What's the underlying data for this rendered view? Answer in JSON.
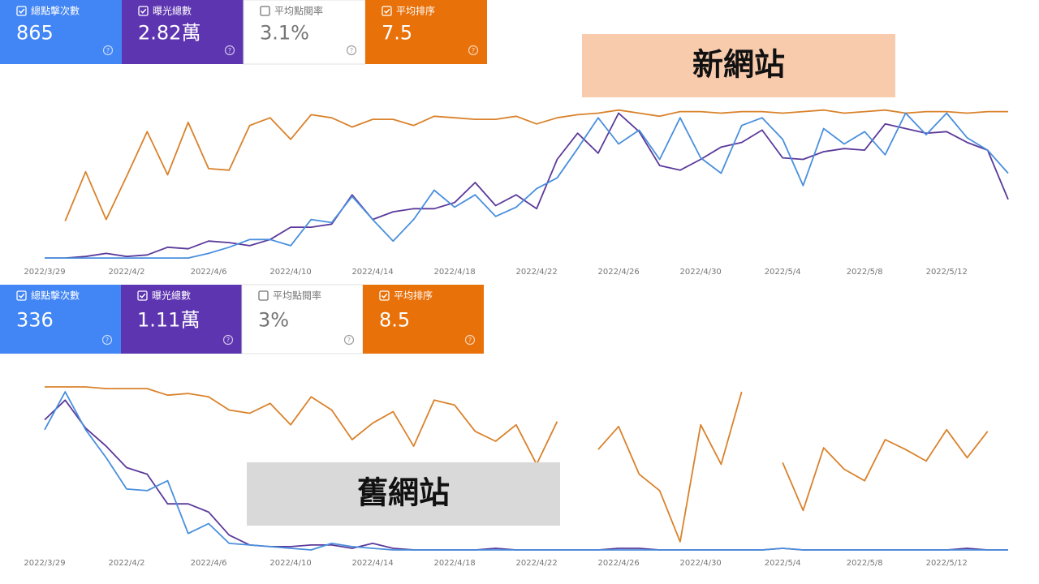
{
  "panels": [
    {
      "cards": [
        {
          "label": "總點擊次數",
          "value": "865",
          "checked": true,
          "color": "#4285f4"
        },
        {
          "label": "曝光總數",
          "value": "2.82萬",
          "checked": true,
          "color": "#5e35b1"
        },
        {
          "label": "平均點閱率",
          "value": "3.1%",
          "checked": false,
          "color": "#ffffff"
        },
        {
          "label": "平均排序",
          "value": "7.5",
          "checked": true,
          "color": "#e8710a"
        }
      ],
      "tag": "新網站",
      "tag_color": "#f8cbad"
    },
    {
      "cards": [
        {
          "label": "總點擊次數",
          "value": "336",
          "checked": true,
          "color": "#4285f4"
        },
        {
          "label": "曝光總數",
          "value": "1.11萬",
          "checked": true,
          "color": "#5e35b1"
        },
        {
          "label": "平均點閱率",
          "value": "3%",
          "checked": false,
          "color": "#ffffff"
        },
        {
          "label": "平均排序",
          "value": "8.5",
          "checked": true,
          "color": "#e8710a"
        }
      ],
      "tag": "舊網站",
      "tag_color": "#d9d9d9"
    }
  ],
  "chart_data": [
    {
      "type": "line",
      "ylim": [
        0,
        100
      ],
      "categories": [
        "2022/3/29",
        null,
        null,
        null,
        "2022/4/2",
        null,
        null,
        null,
        "2022/4/6",
        null,
        null,
        null,
        "2022/4/10",
        null,
        null,
        null,
        "2022/4/14",
        null,
        null,
        null,
        "2022/4/18",
        null,
        null,
        null,
        "2022/4/22",
        null,
        null,
        null,
        "2022/4/26",
        null,
        null,
        null,
        "2022/4/30",
        null,
        null,
        null,
        "2022/5/4",
        null,
        null,
        null,
        "2022/5/8",
        null,
        null,
        null,
        "2022/5/12",
        null,
        null,
        null
      ],
      "series": [
        {
          "name": "總點擊次數",
          "color": "#4a8fdd",
          "values": [
            1,
            1,
            1,
            1,
            1,
            1,
            1,
            1,
            4,
            8,
            13,
            13,
            9,
            26,
            24,
            41,
            26,
            12,
            26,
            45,
            34,
            42,
            28,
            34,
            46,
            53,
            72,
            92,
            75,
            84,
            65,
            92,
            66,
            56,
            87,
            92,
            78,
            48,
            85,
            75,
            83,
            68,
            95,
            81,
            95,
            79,
            71,
            56
          ]
        },
        {
          "name": "曝光總數",
          "color": "#5b3a9b",
          "values": [
            1,
            1,
            2,
            4,
            2,
            3,
            8,
            7,
            12,
            11,
            9,
            13,
            21,
            21,
            23,
            42,
            26,
            31,
            33,
            33,
            37,
            50,
            35,
            42,
            33,
            65,
            82,
            69,
            95,
            83,
            61,
            58,
            65,
            73,
            76,
            84,
            66,
            65,
            70,
            72,
            71,
            88,
            85,
            82,
            83,
            76,
            71,
            39
          ]
        },
        {
          "name": "平均排序",
          "color": "#d9822b",
          "values": [
            null,
            25,
            57,
            26,
            54,
            83,
            55,
            89,
            59,
            58,
            87,
            92,
            78,
            94,
            92,
            86,
            91,
            91,
            87,
            93,
            92,
            91,
            91,
            93,
            88,
            92,
            94,
            95,
            97,
            95,
            93,
            96,
            96,
            95,
            96,
            96,
            95,
            96,
            97,
            95,
            96,
            97,
            95,
            96,
            96,
            95,
            96,
            96
          ]
        }
      ]
    },
    {
      "type": "line",
      "ylim": [
        0,
        100
      ],
      "categories": [
        "2022/3/29",
        null,
        null,
        null,
        "2022/4/2",
        null,
        null,
        null,
        "2022/4/6",
        null,
        null,
        null,
        "2022/4/10",
        null,
        null,
        null,
        "2022/4/14",
        null,
        null,
        null,
        "2022/4/18",
        null,
        null,
        null,
        "2022/4/22",
        null,
        null,
        null,
        "2022/4/26",
        null,
        null,
        null,
        "2022/4/30",
        null,
        null,
        null,
        "2022/5/4",
        null,
        null,
        null,
        "2022/5/8",
        null,
        null,
        null,
        "2022/5/12",
        null,
        null,
        null
      ],
      "series": [
        {
          "name": "總點擊次數",
          "color": "#4a8fdd",
          "values": [
            73,
            96,
            73,
            56,
            37,
            36,
            42,
            10,
            16,
            4,
            3,
            2,
            1,
            0,
            4,
            2,
            1,
            0,
            0,
            0,
            0,
            0,
            0,
            0,
            0,
            0,
            0,
            0,
            0,
            0,
            0,
            0,
            0,
            0,
            0,
            0,
            1,
            0,
            0,
            0,
            0,
            0,
            0,
            0,
            0,
            0,
            0,
            0
          ]
        },
        {
          "name": "曝光總數",
          "color": "#5b3a9b",
          "values": [
            79,
            91,
            74,
            63,
            50,
            46,
            28,
            28,
            23,
            9,
            3,
            2,
            2,
            3,
            3,
            1,
            4,
            1,
            0,
            0,
            0,
            0,
            1,
            0,
            0,
            0,
            0,
            0,
            1,
            1,
            0,
            0,
            0,
            0,
            0,
            0,
            1,
            0,
            0,
            0,
            0,
            0,
            0,
            0,
            0,
            1,
            0,
            0
          ]
        },
        {
          "name": "平均排序",
          "color": "#d9822b",
          "values": [
            99,
            99,
            99,
            98,
            98,
            98,
            94,
            95,
            93,
            85,
            83,
            89,
            76,
            93,
            85,
            67,
            77,
            84,
            63,
            91,
            88,
            72,
            66,
            76,
            52,
            78,
            null,
            61,
            75,
            46,
            36,
            5,
            76,
            52,
            96,
            null,
            53,
            24,
            62,
            49,
            42,
            67,
            61,
            54,
            73,
            56,
            72,
            null
          ]
        }
      ]
    }
  ]
}
